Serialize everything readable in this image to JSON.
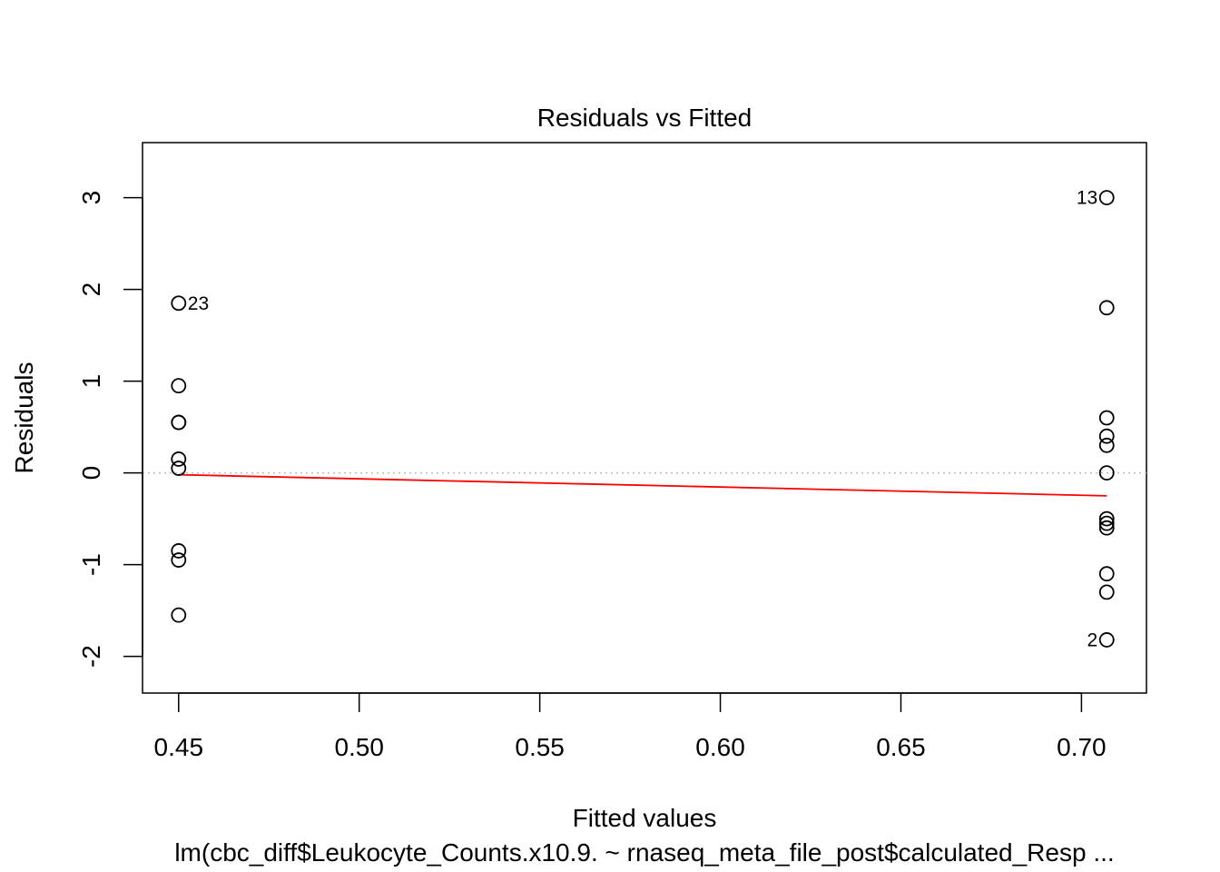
{
  "chart_data": {
    "type": "scatter",
    "title": "Residuals vs Fitted",
    "xlabel": "Fitted values",
    "ylabel": "Residuals",
    "subtitle": "lm(cbc_diff$Leukocyte_Counts.x10.9. ~ rnaseq_meta_file_post$calculated_Resp ...",
    "xlim": [
      0.44,
      0.718
    ],
    "ylim": [
      -2.4,
      3.6
    ],
    "x_ticks": [
      "0.45",
      "0.50",
      "0.55",
      "0.60",
      "0.65",
      "0.70"
    ],
    "y_ticks": [
      "-2",
      "-1",
      "0",
      "1",
      "2",
      "3"
    ],
    "reference_line": {
      "y": 0,
      "style": "dotted",
      "color": "#bbbbbb"
    },
    "series": [
      {
        "x": [
          0.45,
          0.45,
          0.45,
          0.45,
          0.45,
          0.45,
          0.45,
          0.45,
          0.45,
          0.707,
          0.707,
          0.707,
          0.707,
          0.707,
          0.707,
          0.707,
          0.707,
          0.707,
          0.707,
          0.707,
          0.707
        ],
        "y": [
          1.85,
          0.95,
          0.55,
          0.15,
          0.05,
          -0.85,
          -0.95,
          -1.55,
          0.55,
          3.0,
          1.8,
          0.6,
          0.4,
          0.3,
          0.0,
          -0.5,
          -0.6,
          -1.1,
          -1.3,
          -1.82,
          -0.55
        ],
        "color": "#000000"
      }
    ],
    "point_labels": [
      {
        "text": "23",
        "x": 0.45,
        "y": 1.85,
        "side": "right"
      },
      {
        "text": "13",
        "x": 0.707,
        "y": 3.0,
        "side": "left"
      },
      {
        "text": "2",
        "x": 0.707,
        "y": -1.82,
        "side": "left"
      }
    ],
    "smooth_line": {
      "color": "#ff0000",
      "x": [
        0.45,
        0.707
      ],
      "y": [
        -0.02,
        -0.25
      ]
    }
  }
}
